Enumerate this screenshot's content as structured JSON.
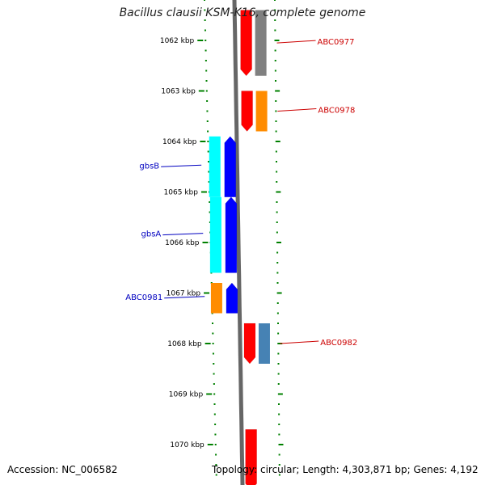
{
  "title": "Bacillus clausii KSM-K16, complete genome",
  "accession_label": "Accession: NC_006582",
  "topology_label": "Topology: circular; Length: 4,303,871 bp; Genes: 4,192",
  "colors": {
    "red": "#ff0000",
    "cyan": "#00ffff",
    "gray": "#808080",
    "orange": "#ff8c00",
    "blue": "#0000ff",
    "steelblue": "#4682b4",
    "tick": "#008000",
    "left_label": "#0000c0",
    "right_label": "#cc0000"
  },
  "ticks": [
    {
      "kbp": 1062,
      "label": "1062 kbp"
    },
    {
      "kbp": 1063,
      "label": "1063 kbp"
    },
    {
      "kbp": 1064,
      "label": "1064 kbp"
    },
    {
      "kbp": 1065,
      "label": "1065 kbp"
    },
    {
      "kbp": 1066,
      "label": "1066 kbp"
    },
    {
      "kbp": 1067,
      "label": "1067 kbp"
    },
    {
      "kbp": 1068,
      "label": "1068 kbp"
    },
    {
      "kbp": 1069,
      "label": "1069 kbp"
    },
    {
      "kbp": 1070,
      "label": "1070 kbp"
    }
  ],
  "genes": [
    {
      "label": "ABC0977",
      "side": "right",
      "strand": "reverse",
      "start": 1061.4,
      "end": 1062.7,
      "cog_color": "gray"
    },
    {
      "label": "ABC0978",
      "side": "right",
      "strand": "reverse",
      "start": 1063.0,
      "end": 1063.8,
      "cog_color": "orange"
    },
    {
      "label": "gbsB",
      "side": "left",
      "strand": "forward",
      "start": 1063.9,
      "end": 1065.1,
      "cog_color": "cyan"
    },
    {
      "label": "gbsA",
      "side": "left",
      "strand": "forward",
      "start": 1065.1,
      "end": 1066.6,
      "cog_color": "cyan"
    },
    {
      "label": "ABC0981",
      "side": "left",
      "strand": "forward",
      "start": 1066.8,
      "end": 1067.4,
      "cog_color": "orange"
    },
    {
      "label": "ABC0982",
      "side": "right",
      "strand": "reverse",
      "start": 1067.6,
      "end": 1068.4,
      "cog_color": "steelblue"
    },
    {
      "label": "",
      "side": "right",
      "strand": "reverse",
      "start": 1069.7,
      "end": 1070.9,
      "cog_color": ""
    }
  ]
}
